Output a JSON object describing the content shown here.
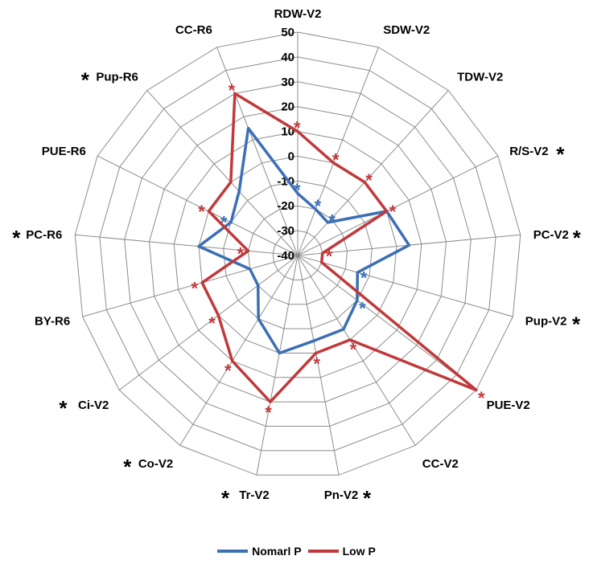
{
  "chart_data": {
    "type": "radar",
    "title": "",
    "axes": [
      "RDW-V2",
      "SDW-V2",
      "TDW-V2",
      "R/S-V2",
      "PC-V2",
      "Pup-V2",
      "PUE-V2",
      "CC-V2",
      "Pn-V2",
      "Tr-V2",
      "Co-V2",
      "Ci-V2",
      "BY-R6",
      "PC-R6",
      "PUE-R6",
      "Pup-R6",
      "CC-R6"
    ],
    "significant_axes": [
      "R/S-V2",
      "PC-V2",
      "Pup-V2",
      "Pn-V2",
      "Tr-V2",
      "Co-V2",
      "Ci-V2",
      "PC-R6",
      "Pup-R6"
    ],
    "rlim": [
      -40,
      50
    ],
    "ticks": [
      "50",
      "40",
      "30",
      "20",
      "10",
      "0",
      "-10",
      "-20",
      "-30",
      "-40"
    ],
    "series": [
      {
        "name": "Nomarl P",
        "color": "#3c6fb4",
        "values": [
          -15,
          -20,
          -22,
          0,
          5,
          -15,
          -10,
          -5,
          -5,
          0,
          -10,
          -20,
          -20,
          0,
          -10,
          -5,
          15
        ],
        "point_stars": [
          true,
          true,
          true,
          false,
          false,
          true,
          true,
          false,
          false,
          false,
          false,
          false,
          false,
          false,
          true,
          false,
          false
        ]
      },
      {
        "name": "Low P",
        "color": "#c0393b",
        "values": [
          10,
          0,
          0,
          0,
          -30,
          -30,
          50,
          0,
          0,
          20,
          10,
          0,
          0,
          -20,
          0,
          0,
          30
        ],
        "point_stars": [
          true,
          true,
          true,
          true,
          true,
          false,
          true,
          true,
          true,
          true,
          true,
          true,
          true,
          true,
          true,
          false,
          true
        ]
      }
    ],
    "grid": true,
    "legend_position": "bottom"
  }
}
